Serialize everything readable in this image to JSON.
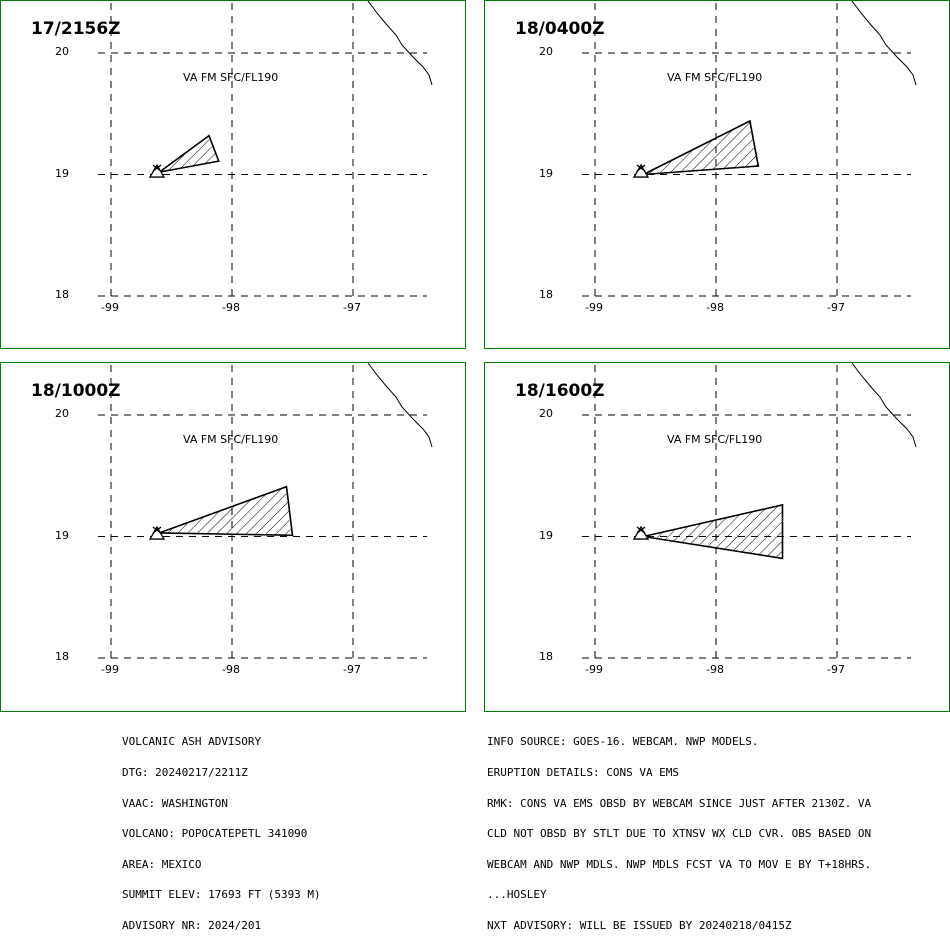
{
  "panels": [
    {
      "time": "17/2156Z",
      "level_label": "VA FM SFC/FL190",
      "ash_polygon": [
        [
          -98.6,
          19.02
        ],
        [
          -98.19,
          19.32
        ],
        [
          -98.11,
          19.11
        ]
      ]
    },
    {
      "time": "18/0400Z",
      "level_label": "VA FM SFC/FL190",
      "ash_polygon": [
        [
          -98.6,
          19.0
        ],
        [
          -97.72,
          19.44
        ],
        [
          -97.65,
          19.07
        ]
      ]
    },
    {
      "time": "18/1000Z",
      "level_label": "VA FM SFC/FL190",
      "ash_polygon": [
        [
          -98.6,
          19.03
        ],
        [
          -97.55,
          19.41
        ],
        [
          -97.5,
          19.01
        ]
      ]
    },
    {
      "time": "18/1600Z",
      "level_label": "VA FM SFC/FL190",
      "ash_polygon": [
        [
          -98.6,
          19.0
        ],
        [
          -97.45,
          19.26
        ],
        [
          -97.45,
          18.82
        ]
      ]
    }
  ],
  "map": {
    "lat_ticks": [
      "20",
      "19",
      "18"
    ],
    "lon_ticks": [
      "-99",
      "-98",
      "-97"
    ],
    "volcano_position": [
      -98.62,
      19.02
    ],
    "grid_color": "#000000",
    "frame_color": "#008000"
  },
  "advisory_left": [
    "VOLCANIC ASH ADVISORY",
    "DTG: 20240217/2211Z",
    "VAAC: WASHINGTON",
    "VOLCANO: POPOCATEPETL 341090",
    "AREA: MEXICO",
    "SUMMIT ELEV: 17693 FT (5393 M)",
    "ADVISORY NR: 2024/201"
  ],
  "advisory_right": [
    "INFO SOURCE: GOES-16. WEBCAM. NWP MODELS.",
    "ERUPTION DETAILS: CONS VA EMS",
    "RMK: CONS VA EMS OBSD BY WEBCAM SINCE JUST AFTER 2130Z. VA",
    "CLD NOT OBSD BY STLT DUE TO XTNSV WX CLD CVR. OBS BASED ON",
    "WEBCAM AND NWP MDLS. NWP MDLS FCST VA TO MOV E BY T+18HRS.",
    "...HOSLEY",
    "NXT ADVISORY: WILL BE ISSUED BY 20240218/0415Z"
  ]
}
